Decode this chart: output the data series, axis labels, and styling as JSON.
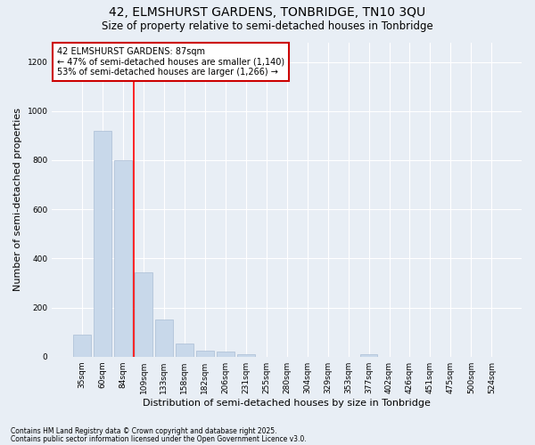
{
  "title1": "42, ELMSHURST GARDENS, TONBRIDGE, TN10 3QU",
  "title2": "Size of property relative to semi-detached houses in Tonbridge",
  "xlabel": "Distribution of semi-detached houses by size in Tonbridge",
  "ylabel": "Number of semi-detached properties",
  "categories": [
    "35sqm",
    "60sqm",
    "84sqm",
    "109sqm",
    "133sqm",
    "158sqm",
    "182sqm",
    "206sqm",
    "231sqm",
    "255sqm",
    "280sqm",
    "304sqm",
    "329sqm",
    "353sqm",
    "377sqm",
    "402sqm",
    "426sqm",
    "451sqm",
    "475sqm",
    "500sqm",
    "524sqm"
  ],
  "values": [
    90,
    920,
    800,
    345,
    150,
    52,
    25,
    22,
    10,
    0,
    0,
    0,
    0,
    0,
    10,
    0,
    0,
    0,
    0,
    0,
    0
  ],
  "bar_color": "#c8d8ea",
  "bar_edge_color": "#aabdd4",
  "red_line_x": 2.5,
  "annotation_title": "42 ELMSHURST GARDENS: 87sqm",
  "annotation_line1": "← 47% of semi-detached houses are smaller (1,140)",
  "annotation_line2": "53% of semi-detached houses are larger (1,266) →",
  "annotation_box_facecolor": "#ffffff",
  "annotation_box_edgecolor": "#cc0000",
  "ylim": [
    0,
    1280
  ],
  "yticks": [
    0,
    200,
    400,
    600,
    800,
    1000,
    1200
  ],
  "footnote1": "Contains HM Land Registry data © Crown copyright and database right 2025.",
  "footnote2": "Contains public sector information licensed under the Open Government Licence v3.0.",
  "bg_color": "#e8eef5",
  "plot_bg_color": "#e8eef5",
  "grid_color": "#ffffff",
  "title_fontsize": 10,
  "subtitle_fontsize": 8.5,
  "tick_fontsize": 6.5,
  "label_fontsize": 8,
  "footnote_fontsize": 5.5,
  "ann_fontsize": 7
}
